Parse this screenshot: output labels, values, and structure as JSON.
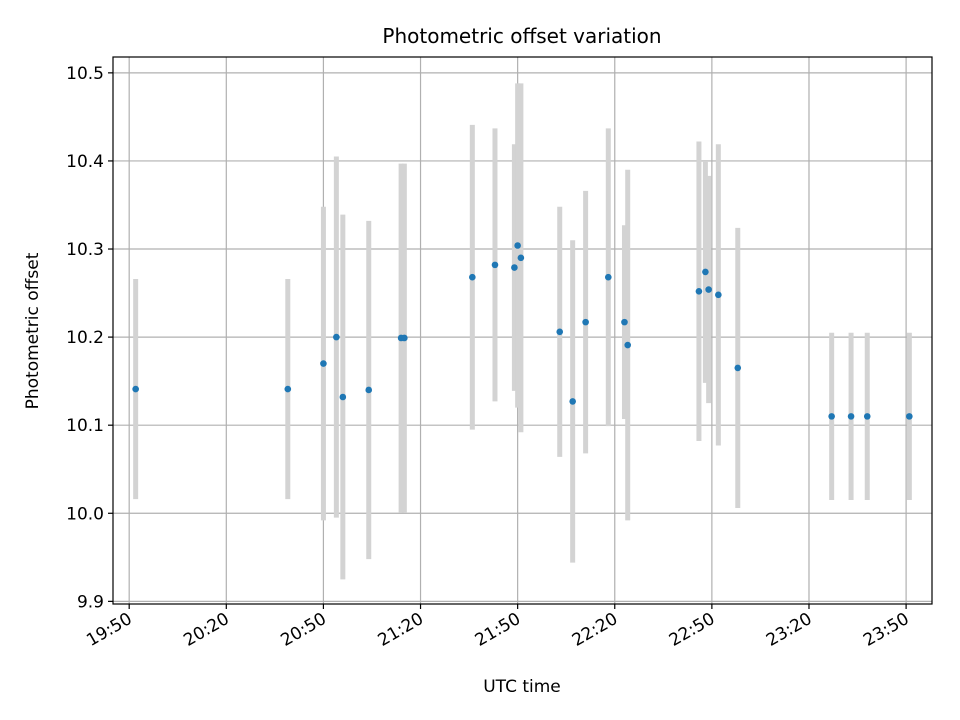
{
  "chart_data": {
    "type": "scatter",
    "title": "Photometric offset variation",
    "xlabel": "UTC time",
    "ylabel": "Photometric offset",
    "grid": true,
    "xlim": [
      "19:45",
      "23:58"
    ],
    "ylim": [
      9.897,
      10.518
    ],
    "x_ticks": [
      "19:50",
      "20:20",
      "20:50",
      "21:20",
      "21:50",
      "22:20",
      "22:50",
      "23:20",
      "23:50"
    ],
    "y_ticks": [
      "9.9",
      "10.0",
      "10.1",
      "10.2",
      "10.3",
      "10.4",
      "10.5"
    ],
    "x_tick_rotation_deg": 30,
    "point_color": "#1f77b4",
    "errorbar_color": "#d3d3d3",
    "points": [
      {
        "x": "19:52",
        "y": 10.141,
        "yerr": 0.125
      },
      {
        "x": "20:39",
        "y": 10.141,
        "yerr": 0.125
      },
      {
        "x": "20:50",
        "y": 10.17,
        "yerr": 0.178
      },
      {
        "x": "20:54",
        "y": 10.2,
        "yerr": 0.205
      },
      {
        "x": "20:56",
        "y": 10.132,
        "yerr": 0.207
      },
      {
        "x": "21:04",
        "y": 10.14,
        "yerr": 0.192
      },
      {
        "x": "21:14",
        "y": 10.199,
        "yerr": 0.198
      },
      {
        "x": "21:15",
        "y": 10.199,
        "yerr": 0.198
      },
      {
        "x": "21:36",
        "y": 10.268,
        "yerr": 0.173
      },
      {
        "x": "21:43",
        "y": 10.282,
        "yerr": 0.155
      },
      {
        "x": "21:49",
        "y": 10.279,
        "yerr": 0.14
      },
      {
        "x": "21:50",
        "y": 10.304,
        "yerr": 0.184
      },
      {
        "x": "21:51",
        "y": 10.29,
        "yerr": 0.198
      },
      {
        "x": "22:03",
        "y": 10.206,
        "yerr": 0.142
      },
      {
        "x": "22:07",
        "y": 10.127,
        "yerr": 0.183
      },
      {
        "x": "22:11",
        "y": 10.217,
        "yerr": 0.149
      },
      {
        "x": "22:18",
        "y": 10.268,
        "yerr": 0.169
      },
      {
        "x": "22:23",
        "y": 10.217,
        "yerr": 0.11
      },
      {
        "x": "22:24",
        "y": 10.191,
        "yerr": 0.199
      },
      {
        "x": "22:46",
        "y": 10.252,
        "yerr": 0.17
      },
      {
        "x": "22:48",
        "y": 10.274,
        "yerr": 0.126
      },
      {
        "x": "22:49",
        "y": 10.254,
        "yerr": 0.129
      },
      {
        "x": "22:52",
        "y": 10.248,
        "yerr": 0.171
      },
      {
        "x": "22:58",
        "y": 10.165,
        "yerr": 0.159
      },
      {
        "x": "23:27",
        "y": 10.11,
        "yerr": 0.095
      },
      {
        "x": "23:33",
        "y": 10.11,
        "yerr": 0.095
      },
      {
        "x": "23:38",
        "y": 10.11,
        "yerr": 0.095
      },
      {
        "x": "23:51",
        "y": 10.11,
        "yerr": 0.095
      }
    ]
  }
}
